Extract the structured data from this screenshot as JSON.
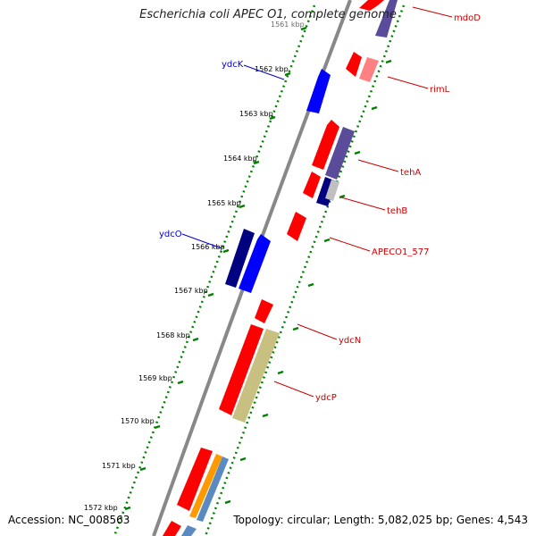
{
  "title": "Escherichia coli APEC O1, complete genome",
  "footer": {
    "accession": "Accession: NC_008563",
    "summary": "Topology: circular; Length: 5,082,025 bp; Genes: 4,543"
  },
  "colors": {
    "backbone": "#808080",
    "forward_gene": "#0000ff",
    "forward_gene_dark": "#000080",
    "reverse_gene": "#ff0000",
    "reverse_gene_light": "#ff8080",
    "reverse_gene_dark": "#5a4c9a",
    "reverse_gene_olive": "#c8c080",
    "orange_gene": "#ff9900",
    "steel_gene": "#5a8ac0",
    "tick": "#006400",
    "label_forward": "#0000cc",
    "label_reverse": "#cc0000"
  },
  "ruler": {
    "ticks": [
      "1561 kbp",
      "1562 kbp",
      "1563 kbp",
      "1564 kbp",
      "1565 kbp",
      "1566 kbp",
      "1567 kbp",
      "1568 kbp",
      "1569 kbp",
      "1570 kbp",
      "1571 kbp",
      "1572 kbp"
    ]
  },
  "genes": {
    "forward": [
      "ydcK",
      "ydcO"
    ],
    "reverse": [
      "mdoD",
      "rimL",
      "tehA",
      "tehB",
      "APECO1_577",
      "ydcN",
      "ydcP"
    ]
  }
}
